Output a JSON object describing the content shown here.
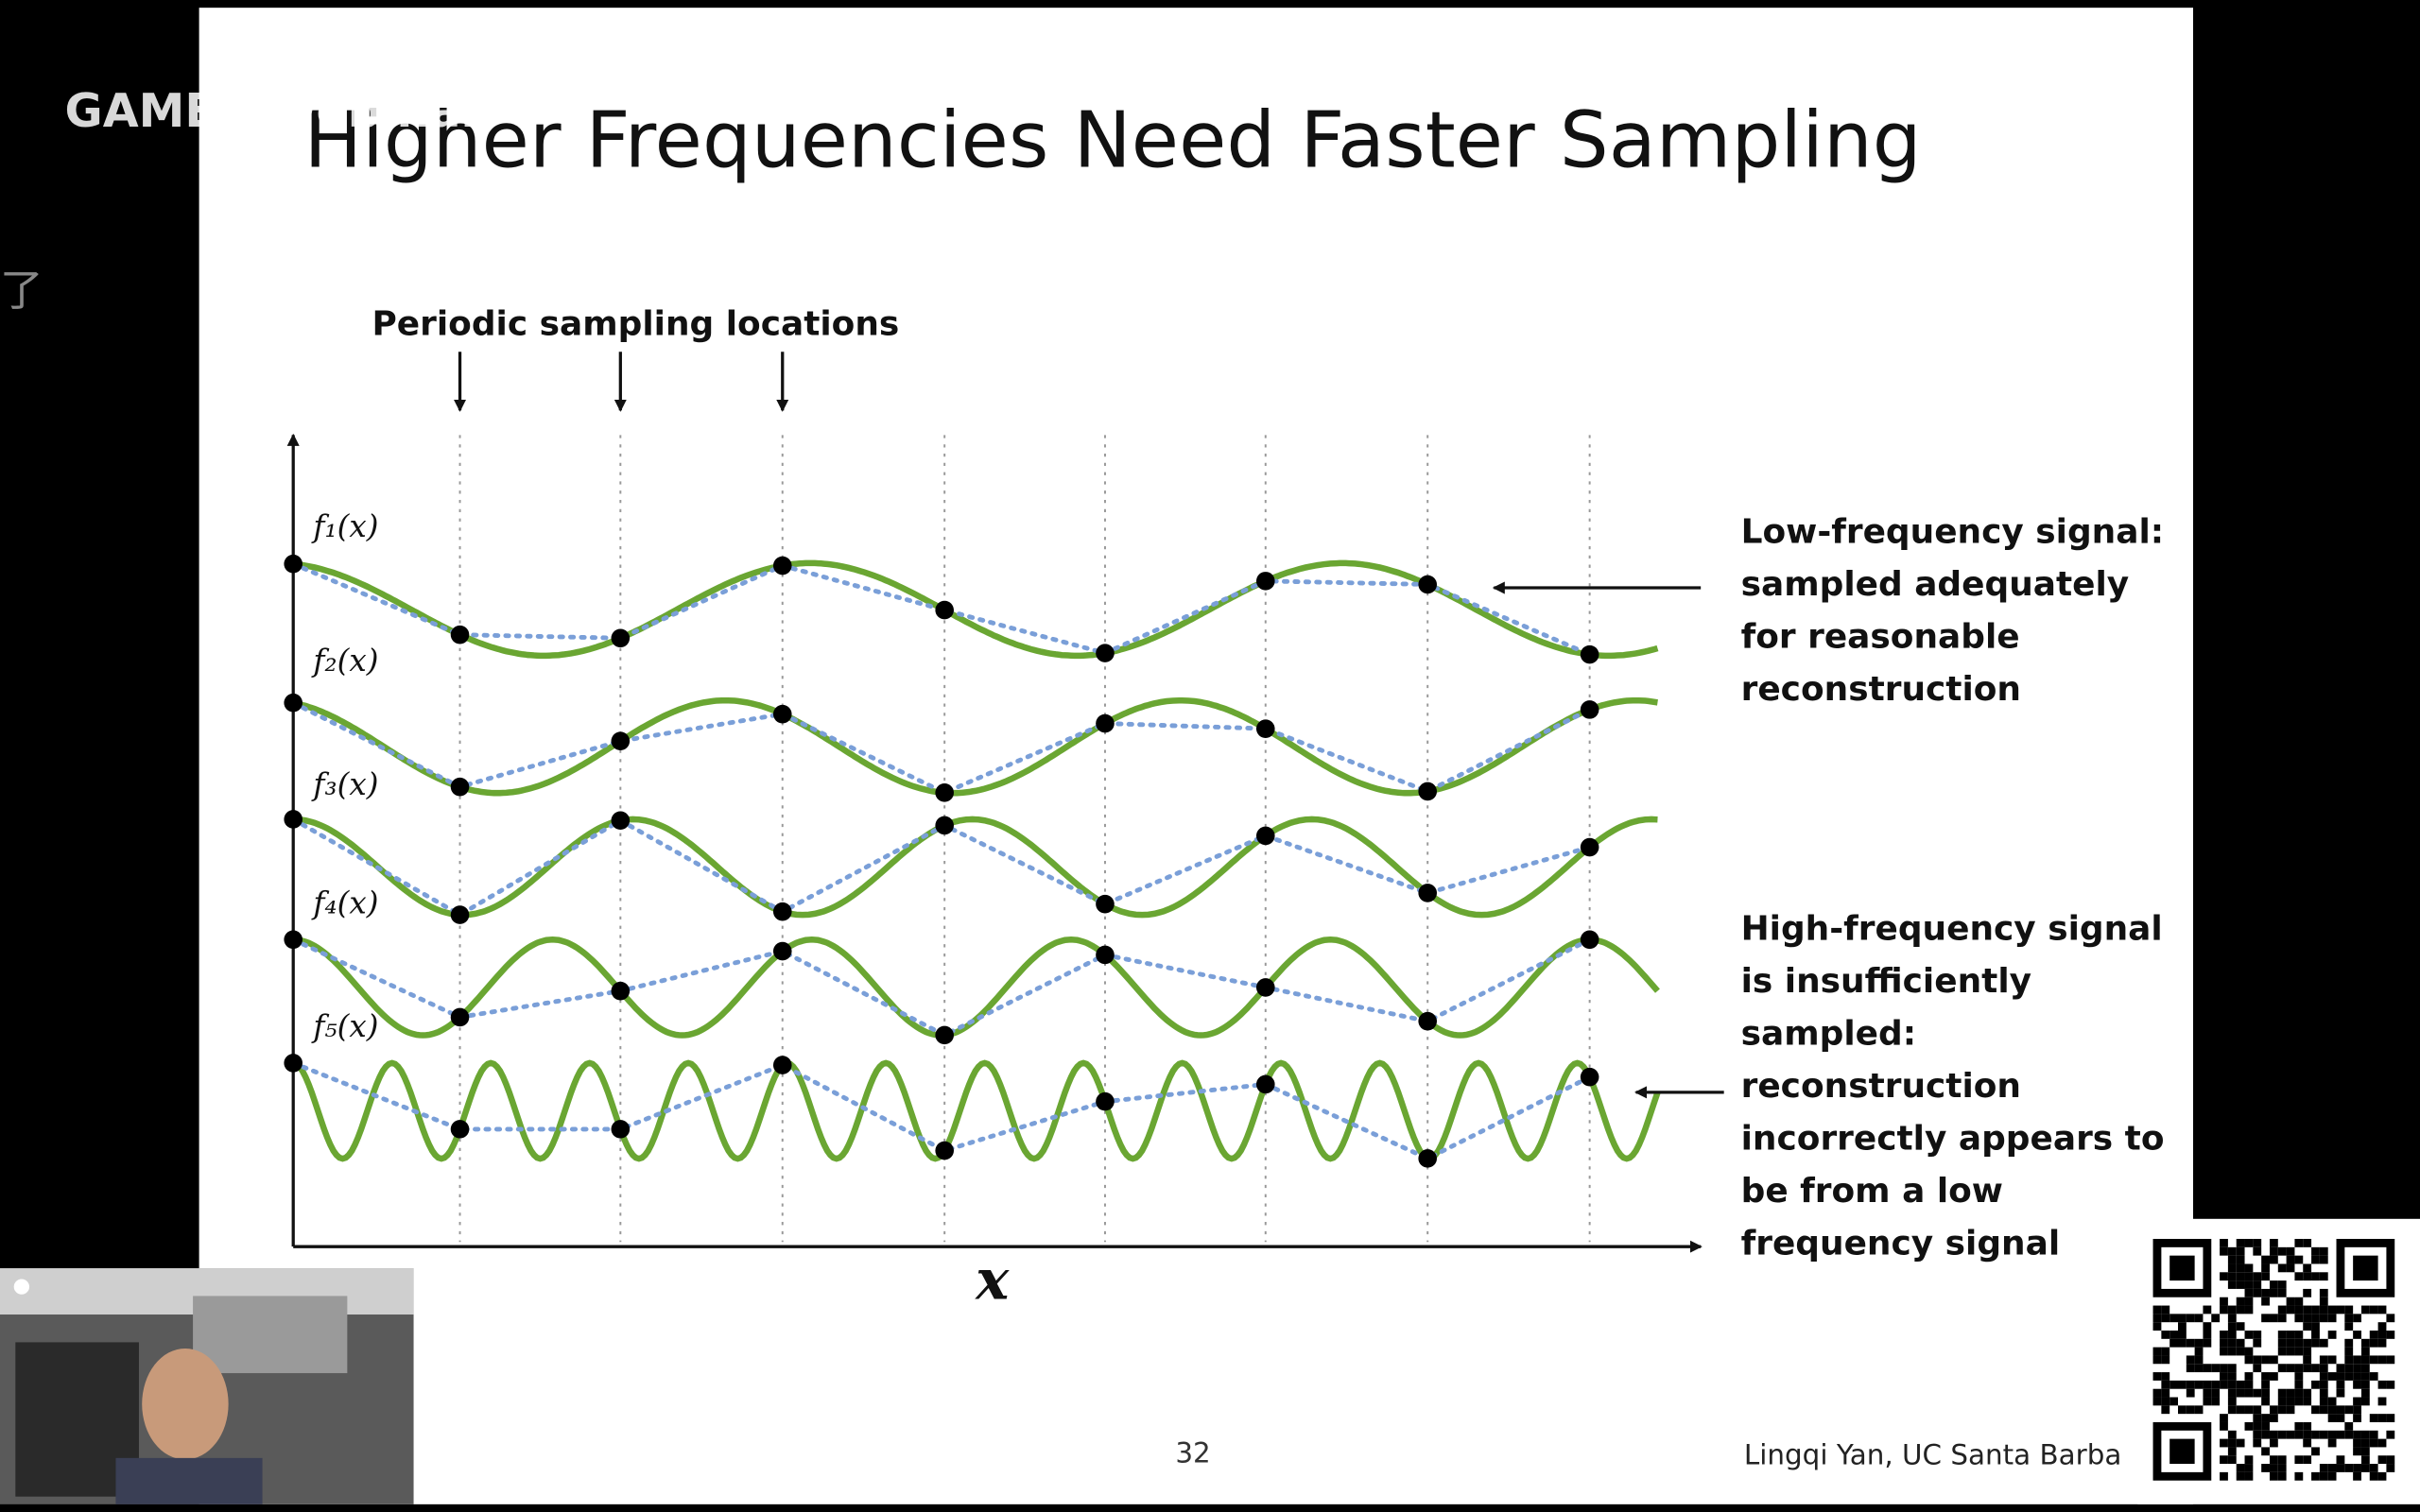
{
  "overlay": {
    "watermark": "GAMES-Webinar",
    "side_text": "了"
  },
  "slide": {
    "title": "Higher Frequencies Need Faster Sampling",
    "sampling_label": "Periodic sampling locations",
    "function_labels": [
      "f₁(x)",
      "f₂(x)",
      "f₃(x)",
      "f₄(x)",
      "f₅(x)"
    ],
    "x_axis_label": "x",
    "low_note": [
      "Low-frequency signal:",
      "sampled adequately",
      "for reasonable",
      "reconstruction"
    ],
    "high_note": [
      "High-frequency signal",
      "is insufficiently",
      "sampled:",
      "reconstruction",
      "incorrectly appears to",
      "be from a low",
      "frequency signal"
    ],
    "page_number": "32",
    "author": "Lingqi Yan, UC Santa Barba"
  }
}
